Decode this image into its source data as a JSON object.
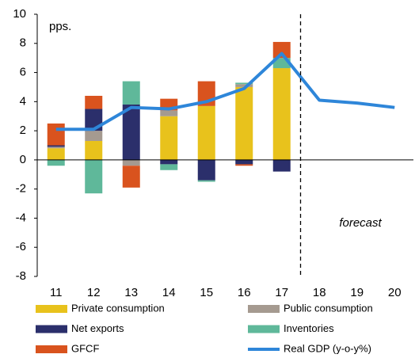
{
  "chart_data": {
    "type": "stacked_bar_line",
    "categories": [
      "11",
      "12",
      "13",
      "14",
      "15",
      "16",
      "17",
      "18",
      "19",
      "20"
    ],
    "series": [
      {
        "name": "Private consumption",
        "color": "#e8c21c",
        "values": [
          0.8,
          1.3,
          0,
          3.0,
          3.7,
          5.0,
          6.3,
          null,
          null,
          null
        ]
      },
      {
        "name": "Public consumption",
        "color": "#a59a90",
        "values": [
          0.1,
          0.7,
          -0.4,
          0.4,
          0,
          0.2,
          0,
          null,
          null,
          null
        ]
      },
      {
        "name": "Net exports",
        "color": "#2b2f6b",
        "values": [
          0.1,
          1.5,
          3.8,
          -0.3,
          -1.4,
          -0.3,
          -0.8,
          null,
          null,
          null
        ]
      },
      {
        "name": "Inventories",
        "color": "#5fb89a",
        "values": [
          -0.4,
          -2.3,
          1.6,
          -0.4,
          -0.1,
          0.1,
          0.7,
          null,
          null,
          null
        ]
      },
      {
        "name": "GFCF",
        "color": "#d9531e",
        "values": [
          1.5,
          0.9,
          -1.5,
          0.8,
          1.7,
          -0.1,
          1.1,
          null,
          null,
          null
        ]
      },
      {
        "name": "Real GDP (y-o-y%)",
        "color": "#2e86d9",
        "type": "line",
        "values": [
          2.1,
          2.1,
          3.6,
          3.5,
          4.0,
          4.9,
          7.3,
          4.1,
          3.9,
          3.6
        ]
      }
    ],
    "ylim": [
      -8,
      10
    ],
    "yticks": [
      -8,
      -6,
      -4,
      -2,
      0,
      2,
      4,
      6,
      8,
      10
    ],
    "annotations": [
      "pps.",
      "forecast"
    ]
  }
}
